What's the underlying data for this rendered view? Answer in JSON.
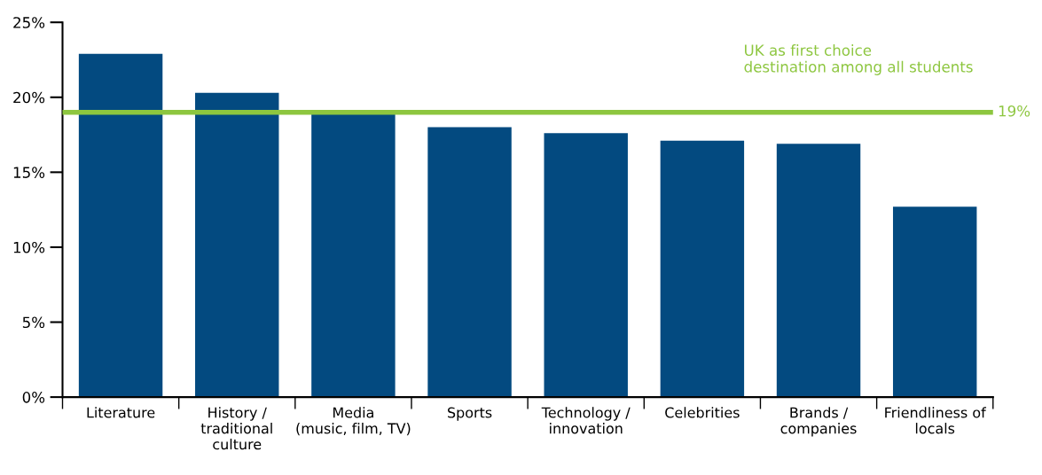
{
  "chart_data": {
    "type": "bar",
    "categories": [
      "Literature",
      "History /\ntraditional\nculture",
      "Media\n(music, film, TV)",
      "Sports",
      "Technology /\ninnovation",
      "Celebrities",
      "Brands /\ncompanies",
      "Friendliness of\nlocals"
    ],
    "values": [
      22.9,
      20.3,
      19.0,
      18.0,
      17.6,
      17.1,
      16.9,
      12.7
    ],
    "color": "#034a80",
    "ylim": [
      0,
      25
    ],
    "yticks": [
      {
        "value": 0,
        "label": "0%"
      },
      {
        "value": 5,
        "label": "5%"
      },
      {
        "value": 10,
        "label": "10%"
      },
      {
        "value": 15,
        "label": "15%"
      },
      {
        "value": 20,
        "label": "20%"
      },
      {
        "value": 25,
        "label": "25%"
      }
    ],
    "ref_lines": [
      {
        "axis": "y",
        "value": 19,
        "label": "19%",
        "color": "#8dc63f"
      }
    ],
    "annotations": [
      "UK as first choice\ndestination among all students"
    ],
    "grid": false,
    "legend": false
  }
}
